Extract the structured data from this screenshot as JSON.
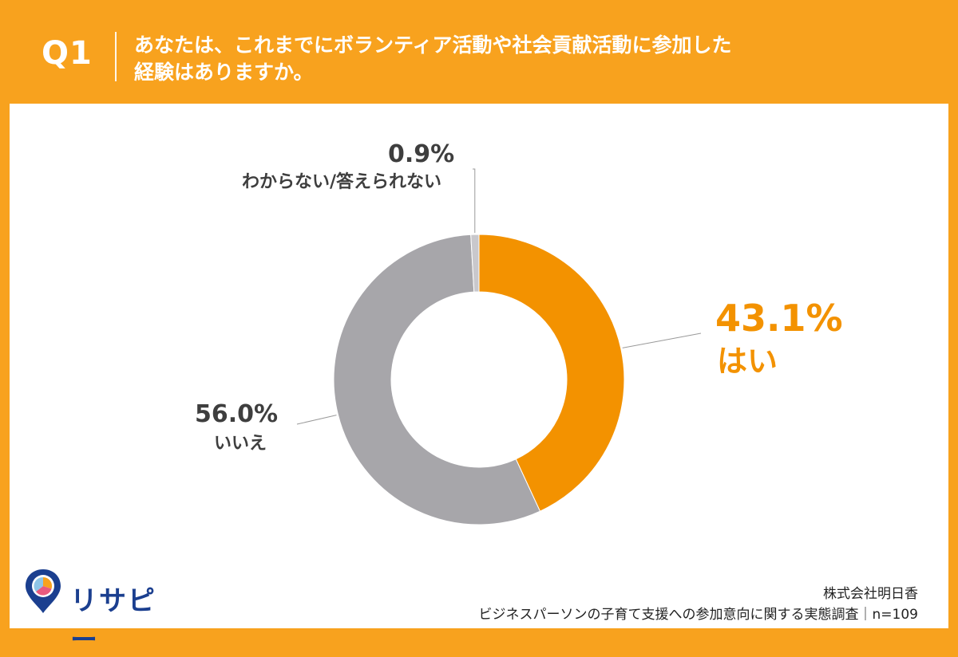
{
  "header": {
    "question_number": "Q1",
    "question_line1": "あなたは、これまでにボランティア活動や社会貢献活動に参加した",
    "question_line2": "経験はありますか。"
  },
  "chart_data": {
    "type": "pie",
    "categories": [
      "はい",
      "いいえ",
      "わからない/答えられない"
    ],
    "values": [
      43.1,
      56.0,
      0.9
    ],
    "value_labels": [
      "43.1%",
      "56.0%",
      "0.9%"
    ],
    "colors": [
      "#F39200",
      "#A7A6AA",
      "#C9C8CC"
    ],
    "title": ""
  },
  "source": {
    "company": "株式会社明日香",
    "survey": "ビジネスパーソンの子育て支援への参加意向に関する実態調査｜n=109"
  },
  "logo": {
    "name": "リサピー",
    "colors": [
      "#1B3F8F",
      "#F8A21E",
      "#E85A7E",
      "#8EC5E8"
    ]
  }
}
